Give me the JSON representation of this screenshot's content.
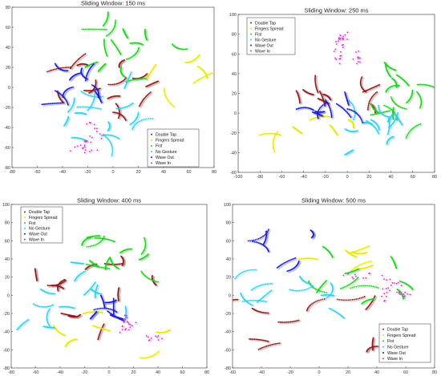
{
  "chart_data": [
    {
      "type": "scatter",
      "title": "Sliding Window: 150 ms",
      "xlim": [
        -80,
        80
      ],
      "ylim": [
        -80,
        80
      ],
      "xticks": [
        -80,
        -60,
        -40,
        -20,
        0,
        20,
        40,
        60,
        80
      ],
      "yticks": [
        -80,
        -60,
        -40,
        -20,
        0,
        20,
        40,
        60,
        80
      ],
      "legend_position": "bottom-right",
      "series": [
        {
          "name": "Double Tap",
          "color": "#8b1a1a"
        },
        {
          "name": "Fingers Spread",
          "color": "#e6e600"
        },
        {
          "name": "Fist",
          "color": "#22cc22"
        },
        {
          "name": "No Gesture",
          "color": "#33ccee"
        },
        {
          "name": "Wave Out",
          "color": "#1a1acc"
        },
        {
          "name": "Wave In",
          "color": "#cc33cc"
        }
      ]
    },
    {
      "type": "scatter",
      "title": "Sliding Window: 250 ms",
      "xlim": [
        -100,
        80
      ],
      "ylim": [
        -60,
        100
      ],
      "xticks": [
        -100,
        -80,
        -60,
        -40,
        -20,
        0,
        20,
        40,
        60,
        80
      ],
      "yticks": [
        -60,
        -40,
        -20,
        0,
        20,
        40,
        60,
        80,
        100
      ],
      "legend_position": "top-left",
      "series": [
        {
          "name": "Double Tap",
          "color": "#8b1a1a"
        },
        {
          "name": "Fingers Spread",
          "color": "#e6e600"
        },
        {
          "name": "Fist",
          "color": "#22cc22"
        },
        {
          "name": "No Gesture",
          "color": "#33ccee"
        },
        {
          "name": "Wave Out",
          "color": "#1a1acc"
        },
        {
          "name": "Wave In",
          "color": "#cc33cc"
        }
      ]
    },
    {
      "type": "scatter",
      "title": "Sliding Window: 400 ms",
      "xlim": [
        -80,
        80
      ],
      "ylim": [
        -80,
        100
      ],
      "xticks": [
        -80,
        -60,
        -40,
        -20,
        0,
        20,
        40,
        60,
        80
      ],
      "yticks": [
        -80,
        -60,
        -40,
        -20,
        0,
        20,
        40,
        60,
        80,
        100
      ],
      "legend_position": "top-left",
      "series": [
        {
          "name": "Double Tap",
          "color": "#8b1a1a"
        },
        {
          "name": "Fingers Spread",
          "color": "#e6e600"
        },
        {
          "name": "Fist",
          "color": "#22cc22"
        },
        {
          "name": "No Gesture",
          "color": "#33ccee"
        },
        {
          "name": "Wave Out",
          "color": "#1a1acc"
        },
        {
          "name": "Wave In",
          "color": "#cc33cc"
        }
      ]
    },
    {
      "type": "scatter",
      "title": "Sliding Window: 500 ms",
      "xlim": [
        -60,
        80
      ],
      "ylim": [
        -80,
        100
      ],
      "xticks": [
        -60,
        -40,
        -20,
        0,
        20,
        40,
        60,
        80
      ],
      "yticks": [
        -80,
        -60,
        -40,
        -20,
        0,
        20,
        40,
        60,
        80,
        100
      ],
      "legend_position": "bottom-right",
      "series": [
        {
          "name": "Double Tap",
          "color": "#8b1a1a"
        },
        {
          "name": "Fingers Spread",
          "color": "#e6e600"
        },
        {
          "name": "Fist",
          "color": "#22cc22"
        },
        {
          "name": "No Gesture",
          "color": "#33ccee"
        },
        {
          "name": "Wave Out",
          "color": "#1a1acc"
        },
        {
          "name": "Wave In",
          "color": "#cc33cc"
        }
      ]
    }
  ]
}
